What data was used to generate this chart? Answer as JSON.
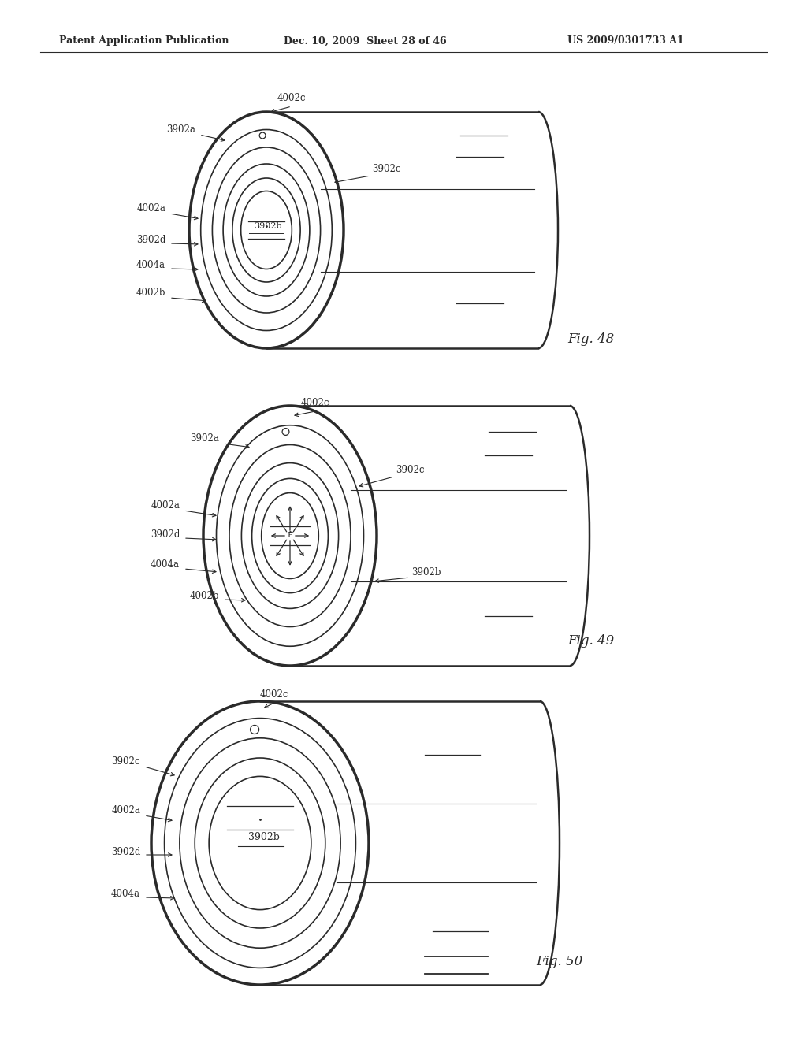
{
  "bg_color": "#ffffff",
  "line_color": "#2a2a2a",
  "header_left": "Patent Application Publication",
  "header_mid": "Dec. 10, 2009  Sheet 28 of 46",
  "header_right": "US 2009/0301733 A1",
  "fig48_label": "Fig. 48",
  "fig49_label": "Fig. 49",
  "fig50_label": "Fig. 50"
}
